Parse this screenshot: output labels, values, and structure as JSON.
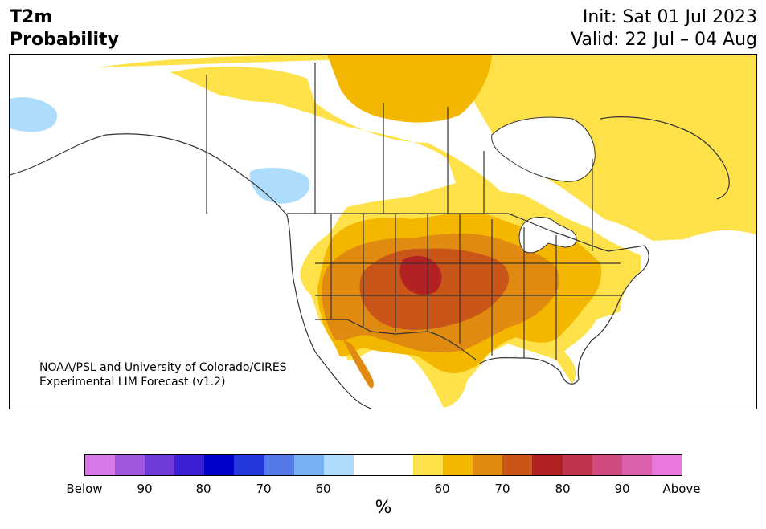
{
  "header": {
    "variable": "T2m",
    "product": "Probability",
    "init": "Init: Sat 01 Jul 2023",
    "valid": "Valid: 22 Jul – 04 Aug"
  },
  "credit": {
    "line1": "NOAA/PSL and University of Colorado/CIRES",
    "line2": "Experimental LIM Forecast (v1.2)"
  },
  "colorbar": {
    "unit": "%",
    "colors": [
      "#d878e8",
      "#a257e0",
      "#6e3bd8",
      "#3a1fd4",
      "#0000cc",
      "#2437dc",
      "#5579e8",
      "#78b2f4",
      "#aedcfc",
      "#ffffff",
      "#ffffff",
      "#ffe14a",
      "#f4b700",
      "#e08a10",
      "#c95618",
      "#b22222",
      "#c13450",
      "#d04c80",
      "#dc61ad",
      "#e878dc"
    ],
    "labels": {
      "below": "Below",
      "b90": "90",
      "b80": "80",
      "b70": "70",
      "b60": "60",
      "a60": "60",
      "a70": "70",
      "a80": "80",
      "a90": "90",
      "above": "Above"
    }
  },
  "map_colors": {
    "land": "#ffffff",
    "border": "#333333",
    "p50_60": "#ffe14a",
    "p60_70": "#f4b700",
    "p70_80": "#e08a10",
    "p80_90": "#c95618",
    "p90": "#b22222",
    "below50_60": "#aedcfc"
  }
}
